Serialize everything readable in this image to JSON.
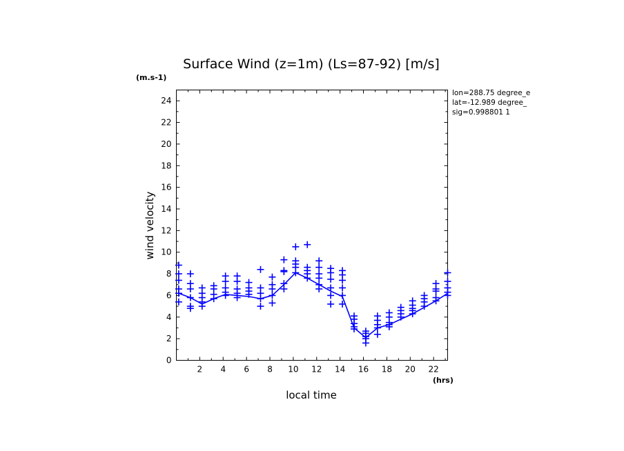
{
  "chart_data": {
    "type": "scatter",
    "title": "Surface Wind (z=1m) (Ls=87-92) [m/s]",
    "y_unit": "(m.s-1)",
    "x_unit": "(hrs)",
    "xlabel": "local time",
    "ylabel": "wind velocity",
    "xlim": [
      0,
      23.2
    ],
    "ylim": [
      0,
      25
    ],
    "x_ticks": [
      2,
      4,
      6,
      8,
      10,
      12,
      14,
      16,
      18,
      20,
      22
    ],
    "y_ticks": [
      0,
      2,
      4,
      6,
      8,
      10,
      12,
      14,
      16,
      18,
      20,
      22,
      24
    ],
    "info": [
      "lon=288.75 degree_e",
      "lat=-12.989 degree_",
      "sig=0.998801 1"
    ],
    "grid": false,
    "color": "#0000ff",
    "series": [
      {
        "type": "line",
        "x": [
          0.2,
          1.2,
          2.2,
          3.2,
          4.2,
          5.2,
          6.2,
          7.2,
          8.2,
          9.2,
          10.2,
          11.2,
          12.2,
          13.2,
          14.2,
          15.2,
          16.2,
          17.2,
          18.2,
          19.2,
          20.2,
          21.2,
          22.2,
          23.2
        ],
        "y": [
          6.2,
          5.8,
          5.2,
          5.7,
          6.1,
          6.0,
          5.9,
          5.7,
          6.0,
          7.0,
          8.1,
          7.6,
          7.0,
          6.4,
          5.9,
          3.0,
          2.1,
          3.0,
          3.3,
          3.8,
          4.3,
          4.9,
          5.5,
          6.2
        ]
      },
      {
        "type": "scatter",
        "marker": "+",
        "points": [
          [
            0.2,
            8.8
          ],
          [
            0.2,
            8.0
          ],
          [
            0.2,
            7.4
          ],
          [
            0.2,
            6.6
          ],
          [
            0.2,
            6.2
          ],
          [
            0.2,
            5.4
          ],
          [
            1.2,
            8.0
          ],
          [
            1.2,
            7.1
          ],
          [
            1.2,
            6.6
          ],
          [
            1.2,
            5.8
          ],
          [
            1.2,
            5.0
          ],
          [
            1.2,
            4.8
          ],
          [
            2.2,
            6.7
          ],
          [
            2.2,
            6.2
          ],
          [
            2.2,
            5.8
          ],
          [
            2.2,
            5.4
          ],
          [
            2.2,
            5.0
          ],
          [
            3.2,
            6.9
          ],
          [
            3.2,
            6.6
          ],
          [
            3.2,
            6.1
          ],
          [
            3.2,
            5.7
          ],
          [
            4.2,
            7.8
          ],
          [
            4.2,
            7.3
          ],
          [
            4.2,
            6.7
          ],
          [
            4.2,
            6.3
          ],
          [
            4.2,
            6.0
          ],
          [
            5.2,
            7.8
          ],
          [
            5.2,
            7.3
          ],
          [
            5.2,
            6.6
          ],
          [
            5.2,
            6.2
          ],
          [
            5.2,
            5.8
          ],
          [
            6.2,
            7.2
          ],
          [
            6.2,
            6.7
          ],
          [
            6.2,
            6.4
          ],
          [
            6.2,
            6.1
          ],
          [
            7.2,
            8.4
          ],
          [
            7.2,
            6.7
          ],
          [
            7.2,
            6.2
          ],
          [
            7.2,
            5.7
          ],
          [
            7.2,
            5.0
          ],
          [
            8.2,
            7.7
          ],
          [
            8.2,
            7.0
          ],
          [
            8.2,
            6.6
          ],
          [
            8.2,
            6.0
          ],
          [
            8.2,
            5.3
          ],
          [
            9.2,
            9.3
          ],
          [
            9.2,
            8.3
          ],
          [
            9.2,
            8.2
          ],
          [
            9.2,
            7.1
          ],
          [
            9.2,
            6.6
          ],
          [
            10.2,
            10.5
          ],
          [
            10.2,
            9.2
          ],
          [
            10.2,
            8.9
          ],
          [
            10.2,
            8.6
          ],
          [
            10.2,
            8.1
          ],
          [
            11.2,
            10.7
          ],
          [
            11.2,
            8.6
          ],
          [
            11.2,
            8.3
          ],
          [
            11.2,
            8.0
          ],
          [
            11.2,
            7.6
          ],
          [
            12.2,
            9.2
          ],
          [
            12.2,
            8.6
          ],
          [
            12.2,
            8.0
          ],
          [
            12.2,
            7.6
          ],
          [
            12.2,
            7.0
          ],
          [
            12.2,
            6.6
          ],
          [
            13.2,
            8.5
          ],
          [
            13.2,
            8.1
          ],
          [
            13.2,
            7.5
          ],
          [
            13.2,
            6.7
          ],
          [
            13.2,
            6.0
          ],
          [
            13.2,
            5.2
          ],
          [
            14.2,
            8.3
          ],
          [
            14.2,
            7.9
          ],
          [
            14.2,
            7.4
          ],
          [
            14.2,
            6.7
          ],
          [
            14.2,
            6.0
          ],
          [
            14.2,
            5.2
          ],
          [
            15.2,
            4.1
          ],
          [
            15.2,
            3.8
          ],
          [
            15.2,
            3.4
          ],
          [
            15.2,
            3.1
          ],
          [
            15.2,
            2.9
          ],
          [
            16.2,
            2.7
          ],
          [
            16.2,
            2.5
          ],
          [
            16.2,
            2.2
          ],
          [
            16.2,
            2.0
          ],
          [
            16.2,
            1.6
          ],
          [
            17.2,
            4.1
          ],
          [
            17.2,
            3.7
          ],
          [
            17.2,
            3.3
          ],
          [
            17.2,
            3.0
          ],
          [
            17.2,
            2.4
          ],
          [
            18.2,
            4.4
          ],
          [
            18.2,
            4.0
          ],
          [
            18.2,
            3.5
          ],
          [
            18.2,
            3.3
          ],
          [
            18.2,
            3.1
          ],
          [
            19.2,
            4.9
          ],
          [
            19.2,
            4.6
          ],
          [
            19.2,
            4.3
          ],
          [
            19.2,
            4.0
          ],
          [
            20.2,
            5.5
          ],
          [
            20.2,
            5.1
          ],
          [
            20.2,
            4.8
          ],
          [
            20.2,
            4.6
          ],
          [
            20.2,
            4.3
          ],
          [
            21.2,
            6.0
          ],
          [
            21.2,
            5.7
          ],
          [
            21.2,
            5.4
          ],
          [
            21.2,
            5.0
          ],
          [
            22.2,
            7.1
          ],
          [
            22.2,
            6.6
          ],
          [
            22.2,
            6.4
          ],
          [
            22.2,
            5.8
          ],
          [
            22.2,
            5.5
          ],
          [
            23.2,
            8.1
          ],
          [
            23.2,
            7.3
          ],
          [
            23.2,
            6.7
          ],
          [
            23.2,
            6.3
          ],
          [
            23.2,
            6.0
          ]
        ]
      }
    ]
  }
}
